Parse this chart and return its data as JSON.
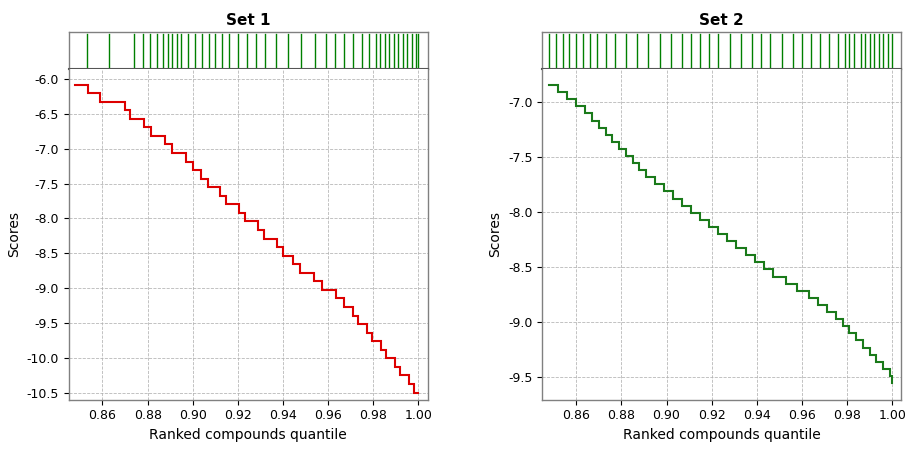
{
  "set1": {
    "title": "Set 1",
    "line_color": "#dd0000",
    "xlim": [
      0.845,
      1.004
    ],
    "ylim": [
      -10.6,
      -5.85
    ],
    "yticks": [
      -10.5,
      -10.0,
      -9.5,
      -9.0,
      -8.5,
      -8.0,
      -7.5,
      -7.0,
      -6.5,
      -6.0
    ],
    "xticks": [
      0.86,
      0.88,
      0.9,
      0.92,
      0.94,
      0.96,
      0.98,
      1.0
    ],
    "ylabel": "Scores",
    "xlabel": "Ranked compounds quantile"
  },
  "set2": {
    "title": "Set 2",
    "line_color": "#1a7a1a",
    "xlim": [
      0.845,
      1.004
    ],
    "ylim": [
      -9.7,
      -6.7
    ],
    "yticks": [
      -9.5,
      -9.0,
      -8.5,
      -8.0,
      -7.5,
      -7.0
    ],
    "xticks": [
      0.86,
      0.88,
      0.9,
      0.92,
      0.94,
      0.96,
      0.98,
      1.0
    ],
    "ylabel": "Scores",
    "xlabel": "Ranked compounds quantile"
  },
  "rug_color": "#008000",
  "rug_positions_1": [
    0.853,
    0.863,
    0.874,
    0.878,
    0.881,
    0.884,
    0.887,
    0.889,
    0.891,
    0.893,
    0.895,
    0.898,
    0.901,
    0.904,
    0.907,
    0.91,
    0.913,
    0.916,
    0.92,
    0.924,
    0.928,
    0.932,
    0.937,
    0.942,
    0.948,
    0.954,
    0.959,
    0.963,
    0.967,
    0.971,
    0.975,
    0.978,
    0.981,
    0.983,
    0.985,
    0.987,
    0.989,
    0.991,
    0.993,
    0.995,
    0.997,
    0.999,
    1.0
  ],
  "rug_positions_2": [
    0.848,
    0.851,
    0.854,
    0.857,
    0.86,
    0.863,
    0.866,
    0.869,
    0.873,
    0.877,
    0.882,
    0.887,
    0.892,
    0.897,
    0.902,
    0.907,
    0.911,
    0.915,
    0.919,
    0.923,
    0.928,
    0.933,
    0.938,
    0.942,
    0.946,
    0.951,
    0.956,
    0.96,
    0.964,
    0.968,
    0.972,
    0.976,
    0.979,
    0.981,
    0.983,
    0.986,
    0.988,
    0.99,
    0.992,
    0.994,
    0.996,
    0.998,
    1.0
  ],
  "bg_color": "#ffffff",
  "grid_color": "#b0b0b0",
  "spine_color": "#808080",
  "title_fontsize": 11,
  "axis_label_fontsize": 10,
  "tick_fontsize": 9,
  "line_width": 1.5
}
